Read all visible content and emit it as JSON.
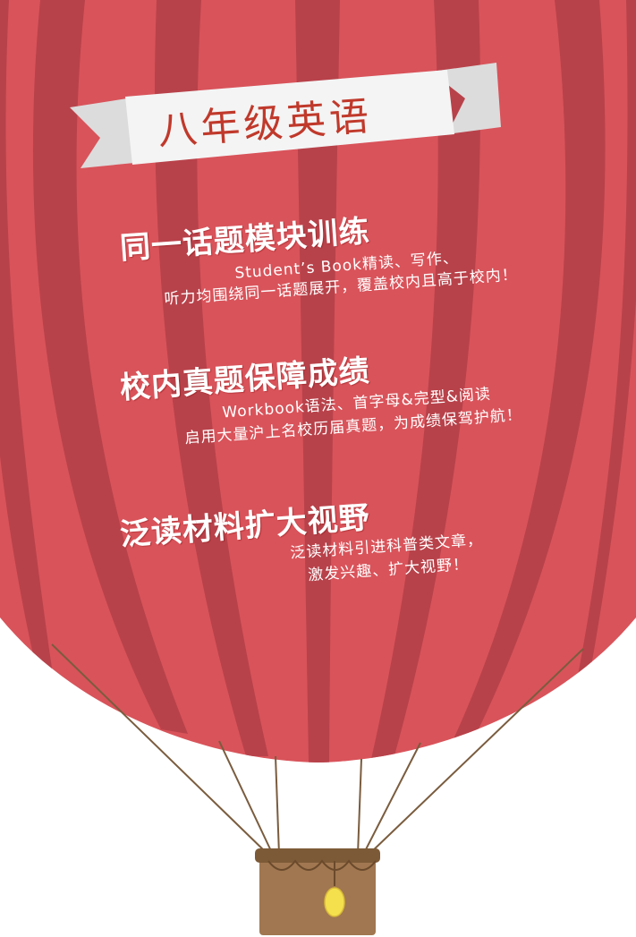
{
  "banner": {
    "title": "八年级英语"
  },
  "sections": [
    {
      "heading": "同一话题模块训练",
      "lines": [
        "Student’s Book精读、写作、",
        "听力均围绕同一话题展开，覆盖校内且高于校内！"
      ]
    },
    {
      "heading": "校内真题保障成绩",
      "lines": [
        "Workbook语法、首字母&完型&阅读",
        "启用大量沪上名校历届真题，为成绩保驾护航！"
      ]
    },
    {
      "heading": "泛读材料扩大视野",
      "lines": [
        "泛读材料引进科普类文章，",
        "激发兴趣、扩大视野！"
      ]
    }
  ],
  "colors": {
    "balloon_light": "#d9535a",
    "balloon_dark": "#b8424a",
    "banner_bg": "#f4f4f4",
    "banner_text": "#c0392b",
    "rope": "#7a5c3e",
    "basket": "#a07750",
    "basket_rim": "#7d5a37",
    "lamp": "#f4e04d"
  }
}
